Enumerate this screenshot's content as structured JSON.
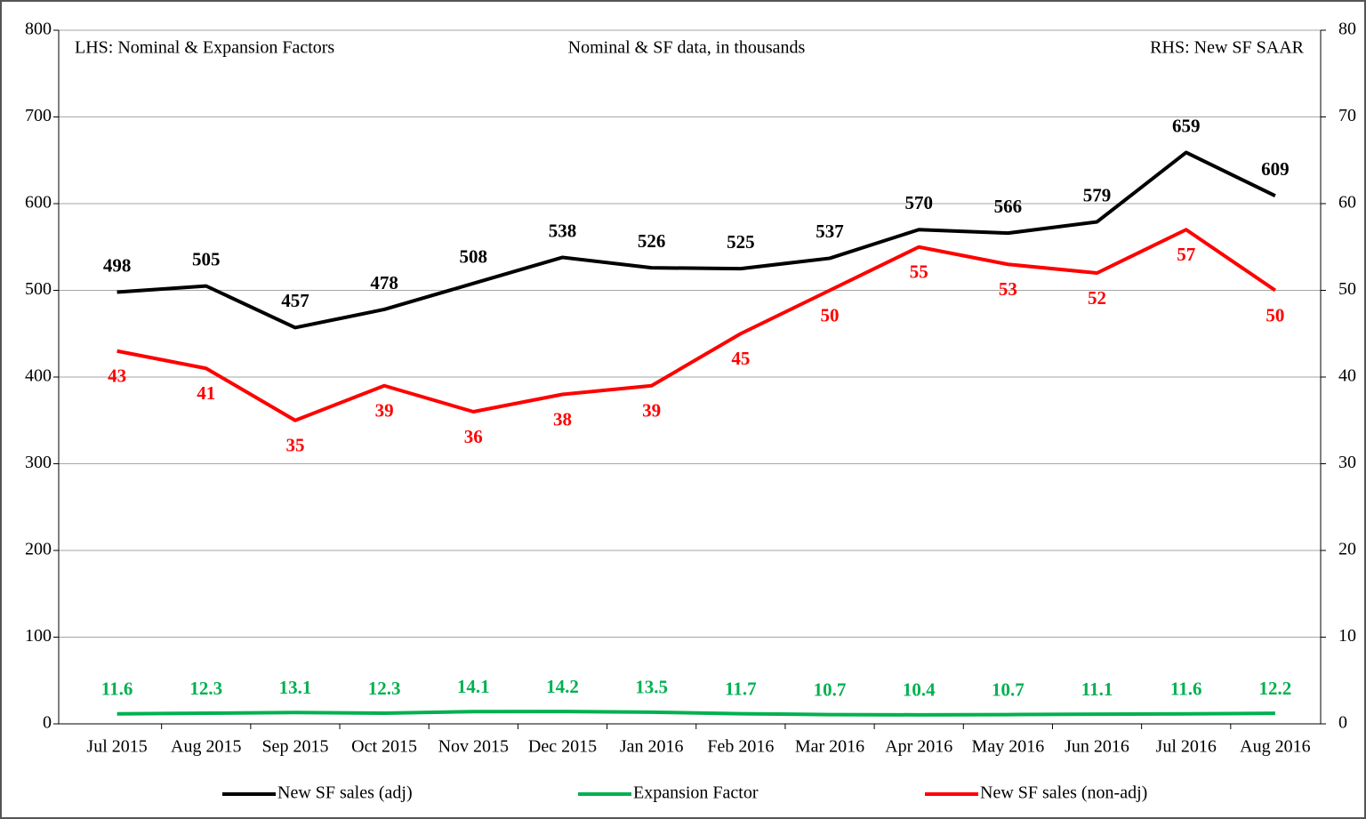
{
  "chart_data": {
    "type": "line",
    "annotations": [
      "LHS: Nominal & Expansion Factors",
      "Nominal & SF data, in thousands",
      "RHS: New SF SAAR"
    ],
    "categories": [
      "Jul 2015",
      "Aug 2015",
      "Sep 2015",
      "Oct 2015",
      "Nov 2015",
      "Dec 2015",
      "Jan 2016",
      "Feb 2016",
      "Mar 2016",
      "Apr 2016",
      "May 2016",
      "Jun 2016",
      "Jul 2016",
      "Aug 2016"
    ],
    "series": [
      {
        "name": "New SF sales (adj)",
        "color": "#000000",
        "values": [
          498,
          505,
          457,
          478,
          508,
          538,
          526,
          525,
          537,
          570,
          566,
          579,
          659,
          609
        ]
      },
      {
        "name": "Expansion Factor",
        "color": "#00b050",
        "values": [
          11.6,
          12.3,
          13.1,
          12.3,
          14.1,
          14.2,
          13.5,
          11.7,
          10.7,
          10.4,
          10.7,
          11.1,
          11.6,
          12.2
        ]
      },
      {
        "name": "New SF sales (non-adj)",
        "color": "#ff0000",
        "axis": "y2",
        "values": [
          43,
          41,
          35,
          39,
          36,
          38,
          39,
          45,
          50,
          55,
          53,
          52,
          57,
          50
        ]
      }
    ],
    "ylim": [
      0,
      800
    ],
    "yticks": [
      0,
      100,
      200,
      300,
      400,
      500,
      600,
      700,
      800
    ],
    "y2lim": [
      0,
      80
    ],
    "y2ticks": [
      0,
      10,
      20,
      30,
      40,
      50,
      60,
      70,
      80
    ],
    "grid": true,
    "legend": "bottom"
  }
}
